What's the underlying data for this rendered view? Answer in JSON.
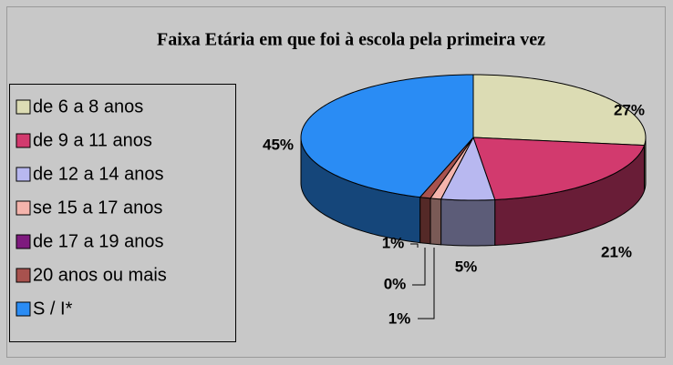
{
  "chart_data": {
    "type": "pie",
    "title": "Faixa Etária em que foi à escola pela primeira vez",
    "categories": [
      "de 6 a 8 anos",
      "de 9 a 11 anos",
      "de 12 a 14 anos",
      "se 15 a 17 anos",
      "de 17 a 19 anos",
      "20 anos ou mais",
      "S / I*"
    ],
    "values": [
      27,
      21,
      5,
      1,
      0,
      1,
      45
    ],
    "value_labels": [
      "27%",
      "21%",
      "5%",
      "1%",
      "0%",
      "1%",
      "45%"
    ],
    "colors": [
      "#dcdcb4",
      "#d23a6e",
      "#b8b8f0",
      "#f4b4ac",
      "#7e1a7e",
      "#a8524e",
      "#2a8cf4"
    ],
    "legend": "left"
  }
}
